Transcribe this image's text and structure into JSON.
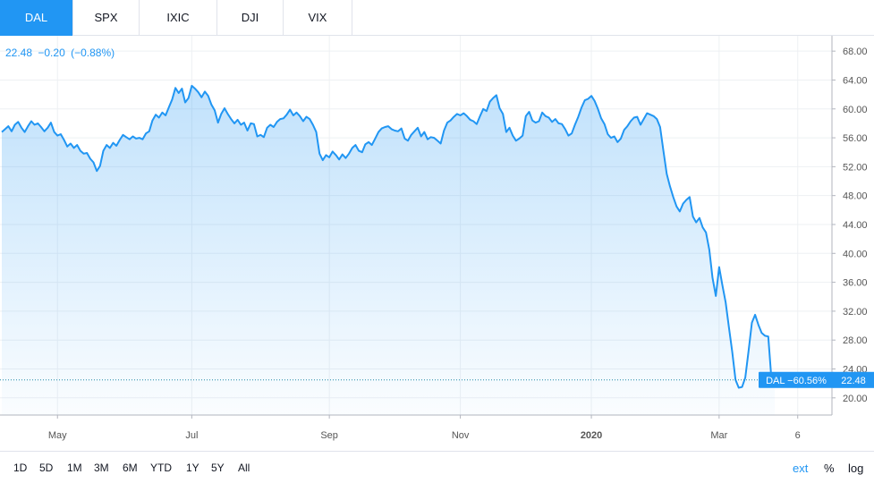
{
  "tabs": [
    {
      "label": "DAL",
      "active": true
    },
    {
      "label": "SPX",
      "active": false
    },
    {
      "label": "IXIC",
      "active": false
    },
    {
      "label": "DJI",
      "active": false
    },
    {
      "label": "VIX",
      "active": false
    }
  ],
  "legend": {
    "last": "22.48",
    "change": "−0.20",
    "change_pct": "(−0.88%)"
  },
  "price_tag": {
    "series_label": "DAL −60.56%",
    "value": "22.48"
  },
  "ranges": [
    "1D",
    "5D",
    "1M",
    "3M",
    "6M",
    "YTD",
    "1Y",
    "5Y",
    "All"
  ],
  "right_controls": {
    "ext": "ext",
    "percent": "%",
    "log": "log"
  },
  "colors": {
    "line": "#2196f3",
    "active_tab": "#2196f3",
    "grid": "#eef0f3"
  },
  "chart_data": {
    "type": "area",
    "title": "",
    "xlabel": "",
    "ylabel": "",
    "ylim": [
      17.5,
      70
    ],
    "y_ticks": [
      "68.00",
      "64.00",
      "60.00",
      "56.00",
      "52.00",
      "48.00",
      "44.00",
      "40.00",
      "36.00",
      "32.00",
      "28.00",
      "24.00",
      "20.00"
    ],
    "x_ticks": [
      "May",
      "Jul",
      "Sep",
      "Nov",
      "2020",
      "Mar",
      "6"
    ],
    "x_tick_index": [
      17,
      58,
      100,
      140,
      180,
      219,
      243
    ],
    "x_domain": [
      0,
      254
    ],
    "series": [
      {
        "name": "DAL",
        "values": [
          56.8,
          57.2,
          57.6,
          56.9,
          57.8,
          58.2,
          57.4,
          56.8,
          57.6,
          58.3,
          57.8,
          58.0,
          57.5,
          56.9,
          57.4,
          58.1,
          56.8,
          56.3,
          56.5,
          55.7,
          54.8,
          55.2,
          54.6,
          55.0,
          54.2,
          53.8,
          53.9,
          53.1,
          52.6,
          51.4,
          52.1,
          54.2,
          55.0,
          54.6,
          55.3,
          54.9,
          55.7,
          56.4,
          56.1,
          55.8,
          56.2,
          55.9,
          56.0,
          55.8,
          56.6,
          56.9,
          58.4,
          59.2,
          58.8,
          59.5,
          59.1,
          60.2,
          61.3,
          62.9,
          62.2,
          62.8,
          60.9,
          61.5,
          63.2,
          62.8,
          62.3,
          61.6,
          62.4,
          61.8,
          60.6,
          59.8,
          58.1,
          59.3,
          60.1,
          59.3,
          58.6,
          58.0,
          58.5,
          57.8,
          58.1,
          57.0,
          58.0,
          57.9,
          56.2,
          56.4,
          56.1,
          57.4,
          57.8,
          57.5,
          58.2,
          58.6,
          58.7,
          59.2,
          59.9,
          59.1,
          59.5,
          59.0,
          58.3,
          58.9,
          58.6,
          57.8,
          56.8,
          53.8,
          52.9,
          53.6,
          53.3,
          54.1,
          53.6,
          53.0,
          53.7,
          53.2,
          53.8,
          54.6,
          55.0,
          54.2,
          54.0,
          55.1,
          55.4,
          55.0,
          55.9,
          56.8,
          57.3,
          57.5,
          57.6,
          57.2,
          57.0,
          56.9,
          57.3,
          55.9,
          55.6,
          56.4,
          56.9,
          57.4,
          56.2,
          56.8,
          55.8,
          56.1,
          56.0,
          55.6,
          55.2,
          57.0,
          58.1,
          58.4,
          58.9,
          59.3,
          59.1,
          59.4,
          59.0,
          58.5,
          58.3,
          57.9,
          59.0,
          60.0,
          59.7,
          61.0,
          61.5,
          61.9,
          60.1,
          59.3,
          56.8,
          57.4,
          56.3,
          55.6,
          55.9,
          56.3,
          59.0,
          59.6,
          58.4,
          58.1,
          58.3,
          59.5,
          59.0,
          58.8,
          58.2,
          58.6,
          58.0,
          57.9,
          57.2,
          56.3,
          56.6,
          57.8,
          58.9,
          60.2,
          61.2,
          61.4,
          61.8,
          61.1,
          60.0,
          58.7,
          57.9,
          56.5,
          56.0,
          56.2,
          55.4,
          55.9,
          57.1,
          57.6,
          58.3,
          58.8,
          58.9,
          57.8,
          58.6,
          59.4,
          59.2,
          59.0,
          58.6,
          57.5,
          54.2,
          51.0,
          49.3,
          47.8,
          46.5,
          45.8,
          46.9,
          47.4,
          47.8,
          45.1,
          44.3,
          44.9,
          43.6,
          42.9,
          40.5,
          36.6,
          34.1,
          38.1,
          35.6,
          33.2,
          29.8,
          26.4,
          22.5,
          21.4,
          21.5,
          22.8,
          26.5,
          30.4,
          31.5,
          30.1,
          29.0,
          28.6,
          28.5,
          22.5,
          22.48
        ]
      }
    ],
    "last_value": 22.48,
    "grid": true,
    "price_scale": "right"
  }
}
